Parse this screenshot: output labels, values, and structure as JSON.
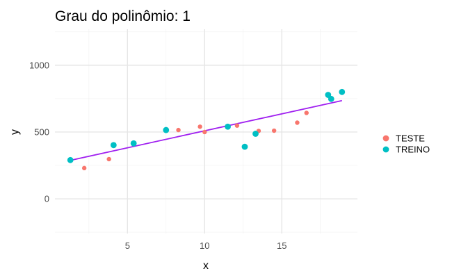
{
  "chart_data": {
    "type": "scatter",
    "title": "Grau do polinômio: 1",
    "xlabel": "x",
    "ylabel": "y",
    "xlim": [
      0.3,
      19.9
    ],
    "ylim": [
      -260,
      1270
    ],
    "x_ticks": [
      5,
      10,
      15
    ],
    "y_ticks": [
      0,
      500,
      1000
    ],
    "grid": true,
    "legend_position": "right",
    "series": [
      {
        "name": "TESTE",
        "color": "#F8766D",
        "points": [
          {
            "x": 2.2,
            "y": 230
          },
          {
            "x": 3.8,
            "y": 297
          },
          {
            "x": 8.3,
            "y": 515
          },
          {
            "x": 9.7,
            "y": 540
          },
          {
            "x": 10.0,
            "y": 500
          },
          {
            "x": 12.1,
            "y": 548
          },
          {
            "x": 13.5,
            "y": 508
          },
          {
            "x": 14.5,
            "y": 510
          },
          {
            "x": 16.0,
            "y": 570
          },
          {
            "x": 16.6,
            "y": 643
          }
        ]
      },
      {
        "name": "TREINO",
        "color": "#00BFC4",
        "points": [
          {
            "x": 1.3,
            "y": 290
          },
          {
            "x": 4.1,
            "y": 402
          },
          {
            "x": 5.4,
            "y": 415
          },
          {
            "x": 7.5,
            "y": 515
          },
          {
            "x": 11.5,
            "y": 540
          },
          {
            "x": 12.6,
            "y": 390
          },
          {
            "x": 13.3,
            "y": 487
          },
          {
            "x": 18.0,
            "y": 778
          },
          {
            "x": 18.2,
            "y": 748
          },
          {
            "x": 18.9,
            "y": 800
          }
        ]
      }
    ],
    "fit_line": {
      "color": "#A020F0",
      "points": [
        {
          "x": 1.3,
          "y": 288
        },
        {
          "x": 18.9,
          "y": 735
        }
      ]
    }
  }
}
